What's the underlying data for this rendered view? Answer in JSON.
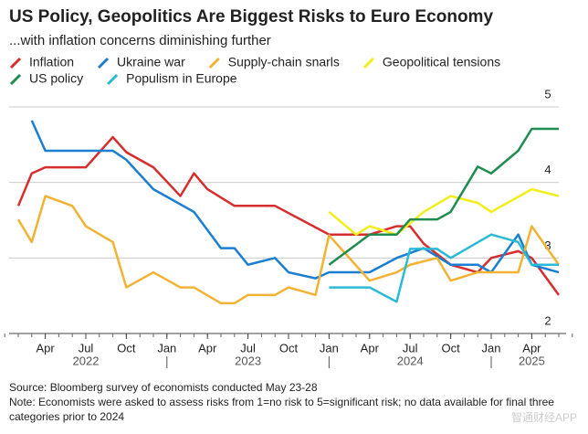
{
  "chart_data": {
    "type": "line",
    "title": "US Policy, Geopolitics Are Biggest Risks to Euro Economy",
    "subtitle": "...with inflation concerns diminishing further",
    "source": "Source: Bloomberg survey of economists conducted May 23-28",
    "note": "Note: Economists were asked to assess risks from 1=no risk to 5=significant risk; no data available for final three categories prior to 2024",
    "watermark": "智通财经APP",
    "xlim": [
      "2022-02",
      "2025-06"
    ],
    "xticks": [
      {
        "value": "2022-04",
        "label": "Apr"
      },
      {
        "value": "2022-07",
        "label": "Jul"
      },
      {
        "value": "2022-10",
        "label": "Oct"
      },
      {
        "value": "2023-01",
        "label": "Jan"
      },
      {
        "value": "2023-04",
        "label": "Apr"
      },
      {
        "value": "2023-07",
        "label": "Jul"
      },
      {
        "value": "2023-10",
        "label": "Oct"
      },
      {
        "value": "2024-01",
        "label": "Jan"
      },
      {
        "value": "2024-04",
        "label": "Apr"
      },
      {
        "value": "2024-07",
        "label": "Jul"
      },
      {
        "value": "2024-10",
        "label": "Oct"
      },
      {
        "value": "2025-01",
        "label": "Jan"
      },
      {
        "value": "2025-04",
        "label": "Apr"
      }
    ],
    "year_labels": [
      {
        "value": "2022-07",
        "label": "2022"
      },
      {
        "value": "2023-07",
        "label": "2023"
      },
      {
        "value": "2024-07",
        "label": "2024"
      },
      {
        "value": "2025-04",
        "label": "2025"
      }
    ],
    "ylim": [
      2,
      5
    ],
    "yticks": [
      2,
      3,
      4,
      5
    ],
    "grid": true,
    "series": [
      {
        "name": "Inflation",
        "color": "#d62d2d",
        "x": [
          "2022-02",
          "2022-03",
          "2022-04",
          "2022-07",
          "2022-09",
          "2022-10",
          "2022-12",
          "2023-02",
          "2023-03",
          "2023-04",
          "2023-06",
          "2023-09",
          "2024-01",
          "2024-04",
          "2024-06",
          "2024-07",
          "2024-08",
          "2024-10",
          "2024-12",
          "2025-01",
          "2025-03",
          "2025-04",
          "2025-06"
        ],
        "values": [
          3.69,
          4.12,
          4.2,
          4.2,
          4.6,
          4.4,
          4.2,
          3.82,
          4.12,
          3.91,
          3.69,
          3.69,
          3.31,
          3.31,
          3.42,
          3.42,
          3.19,
          2.91,
          2.81,
          3.0,
          3.09,
          3.0,
          2.51
        ]
      },
      {
        "name": "Ukraine war",
        "color": "#1a7fd0",
        "x": [
          "2022-03",
          "2022-04",
          "2022-09",
          "2022-10",
          "2022-12",
          "2023-03",
          "2023-05",
          "2023-06",
          "2023-07",
          "2023-09",
          "2023-10",
          "2023-12",
          "2024-01",
          "2024-04",
          "2024-06",
          "2024-08",
          "2024-10",
          "2024-12",
          "2025-01",
          "2025-03",
          "2025-04",
          "2025-06"
        ],
        "values": [
          4.82,
          4.42,
          4.42,
          4.3,
          3.91,
          3.61,
          3.13,
          3.13,
          2.91,
          3.0,
          2.81,
          2.73,
          2.81,
          2.81,
          3.0,
          3.13,
          2.91,
          2.91,
          2.81,
          3.31,
          2.91,
          2.81
        ]
      },
      {
        "name": "Supply-chain snarls",
        "color": "#f2b233",
        "x": [
          "2022-02",
          "2022-03",
          "2022-04",
          "2022-06",
          "2022-07",
          "2022-09",
          "2022-10",
          "2022-12",
          "2023-02",
          "2023-03",
          "2023-05",
          "2023-06",
          "2023-07",
          "2023-09",
          "2023-10",
          "2023-12",
          "2024-01",
          "2024-04",
          "2024-06",
          "2024-07",
          "2024-09",
          "2024-10",
          "2024-12",
          "2025-03",
          "2025-04",
          "2025-06"
        ],
        "values": [
          3.51,
          3.21,
          3.82,
          3.69,
          3.42,
          3.21,
          2.61,
          2.81,
          2.61,
          2.61,
          2.4,
          2.4,
          2.51,
          2.51,
          2.61,
          2.51,
          3.3,
          2.7,
          2.81,
          2.91,
          3.0,
          2.7,
          2.81,
          2.81,
          3.42,
          2.91
        ]
      },
      {
        "name": "Geopolitical tensions",
        "color": "#f2ee1a",
        "x": [
          "2024-01",
          "2024-03",
          "2024-04",
          "2024-06",
          "2024-08",
          "2024-10",
          "2024-12",
          "2025-01",
          "2025-04",
          "2025-06"
        ],
        "values": [
          3.61,
          3.31,
          3.42,
          3.31,
          3.61,
          3.82,
          3.73,
          3.61,
          3.91,
          3.82
        ]
      },
      {
        "name": "US policy",
        "color": "#1e8c4e",
        "x": [
          "2024-01",
          "2024-04",
          "2024-06",
          "2024-07",
          "2024-09",
          "2024-10",
          "2024-12",
          "2025-01",
          "2025-03",
          "2025-04",
          "2025-06"
        ],
        "values": [
          2.91,
          3.31,
          3.31,
          3.51,
          3.51,
          3.61,
          4.21,
          4.12,
          4.42,
          4.71,
          4.71
        ]
      },
      {
        "name": "Populism in Europe",
        "color": "#2bbad6",
        "x": [
          "2024-01",
          "2024-04",
          "2024-06",
          "2024-07",
          "2024-09",
          "2024-10",
          "2025-01",
          "2025-03",
          "2025-04",
          "2025-06"
        ],
        "values": [
          2.61,
          2.61,
          2.42,
          3.12,
          3.12,
          3.0,
          3.31,
          3.21,
          2.91,
          2.91
        ]
      }
    ]
  }
}
